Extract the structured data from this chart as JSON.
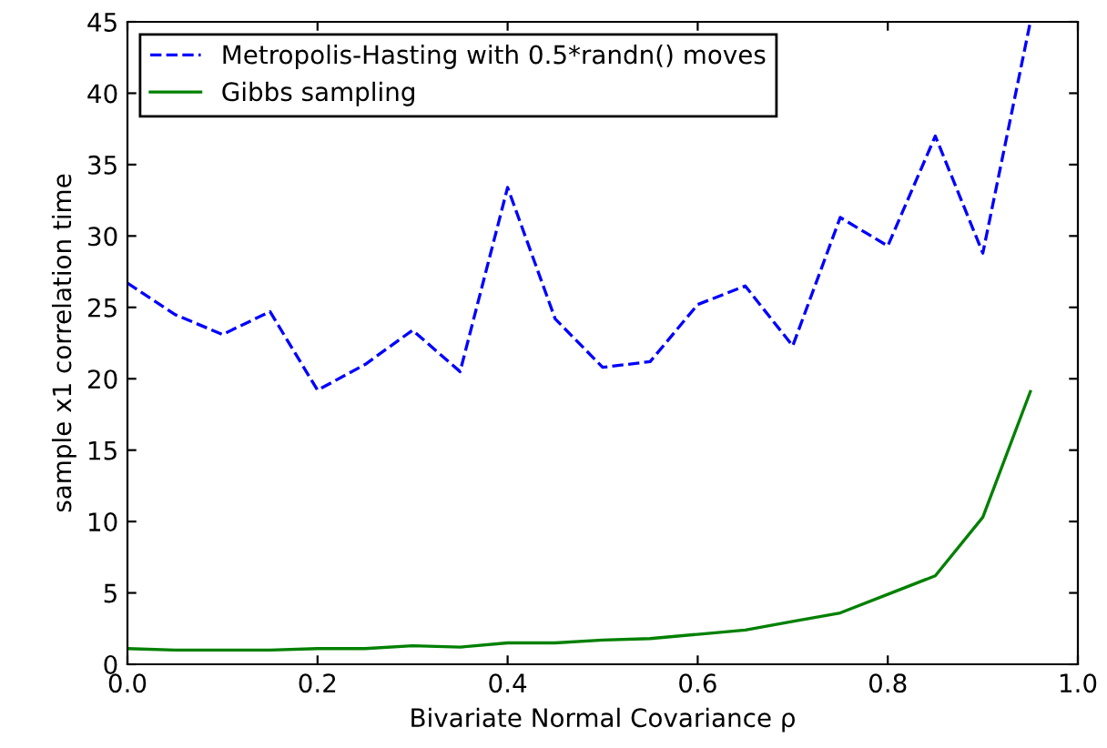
{
  "chart_data": {
    "type": "line",
    "xlabel": "Bivariate Normal Covariance ρ",
    "ylabel": "sample x1 correlation time",
    "x": [
      0,
      0.05,
      0.1,
      0.15,
      0.2,
      0.25,
      0.3,
      0.35,
      0.4,
      0.45,
      0.5,
      0.55,
      0.6,
      0.65,
      0.7,
      0.75,
      0.8,
      0.85,
      0.9,
      0.95
    ],
    "series": [
      {
        "name": "Metropolis-Hasting with 0.5*randn() moves",
        "color": "#0000ff",
        "line_style": "dashed",
        "values": [
          26.7,
          24.5,
          23.1,
          24.7,
          19.2,
          21.0,
          23.4,
          20.5,
          33.4,
          24.2,
          20.8,
          21.2,
          25.2,
          26.5,
          22.3,
          31.3,
          29.3,
          37.0,
          28.8,
          45.0
        ]
      },
      {
        "name": "Gibbs sampling",
        "color": "#008000",
        "line_style": "solid",
        "values": [
          1.1,
          1.0,
          1.0,
          1.0,
          1.1,
          1.1,
          1.3,
          1.2,
          1.5,
          1.5,
          1.7,
          1.8,
          2.1,
          2.4,
          3.0,
          3.6,
          4.9,
          6.2,
          10.3,
          19.1
        ]
      }
    ],
    "xlim": [
      0,
      1
    ],
    "ylim": [
      0,
      45
    ],
    "xticks": [
      {
        "value": 0,
        "label": "0.0"
      },
      0.2,
      0.4,
      0.6,
      0.8,
      {
        "value": 1,
        "label": "1.0"
      }
    ],
    "yticks": [
      0,
      5,
      10,
      15,
      20,
      25,
      30,
      35,
      40,
      45
    ],
    "grid": false,
    "legend": "top left",
    "marker": "none"
  }
}
